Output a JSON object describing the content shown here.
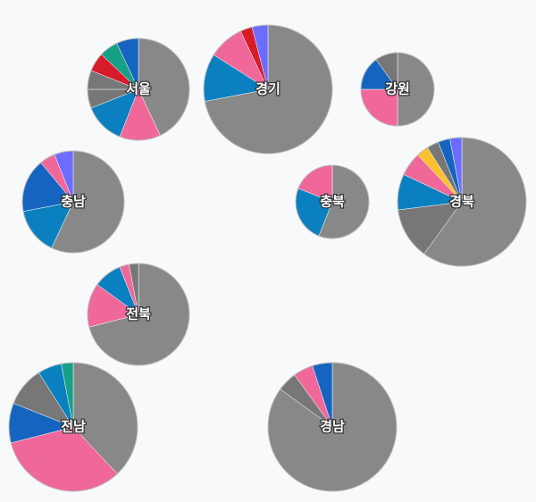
{
  "chart_data": {
    "type": "pie",
    "pies": [
      {
        "label": "서울",
        "values": [
          43,
          13,
          13,
          6,
          6,
          6,
          6,
          7
        ],
        "colors": [
          "#888888",
          "#f0679a",
          "#0a80c0",
          "#777777",
          "#777777",
          "#d81b28",
          "#16a085",
          "#1565c0"
        ]
      },
      {
        "label": "경기",
        "values": [
          72,
          12,
          9,
          3,
          4
        ],
        "colors": [
          "#888888",
          "#0a80c0",
          "#f0679a",
          "#d81b28",
          "#6c6cff"
        ]
      },
      {
        "label": "강원",
        "values": [
          50,
          25,
          15,
          10
        ],
        "colors": [
          "#888888",
          "#f0679a",
          "#1565c0",
          "#777777"
        ]
      },
      {
        "label": "충남",
        "values": [
          57,
          15,
          17,
          5,
          6
        ],
        "colors": [
          "#888888",
          "#0a80c0",
          "#1565c0",
          "#f0679a",
          "#6c6cff"
        ]
      },
      {
        "label": "충북",
        "values": [
          56,
          25,
          19
        ],
        "colors": [
          "#888888",
          "#0a80c0",
          "#f0679a"
        ]
      },
      {
        "label": "경북",
        "values": [
          60,
          13,
          9,
          6,
          3,
          3,
          3,
          3
        ],
        "colors": [
          "#888888",
          "#777777",
          "#0a80c0",
          "#f0679a",
          "#fbc02d",
          "#777777",
          "#1565c0",
          "#6c6cff"
        ]
      },
      {
        "label": "전북",
        "values": [
          71,
          14,
          9,
          3,
          3
        ],
        "colors": [
          "#888888",
          "#f0679a",
          "#0a80c0",
          "#f0679a",
          "#777777"
        ]
      },
      {
        "label": "전남",
        "values": [
          38,
          33,
          10,
          10,
          6,
          3
        ],
        "colors": [
          "#888888",
          "#f0679a",
          "#1565c0",
          "#777777",
          "#0a80c0",
          "#16a085"
        ]
      },
      {
        "label": "경남",
        "values": [
          85,
          5,
          5,
          5
        ],
        "colors": [
          "#888888",
          "#777777",
          "#f0679a",
          "#1565c0"
        ]
      }
    ]
  }
}
